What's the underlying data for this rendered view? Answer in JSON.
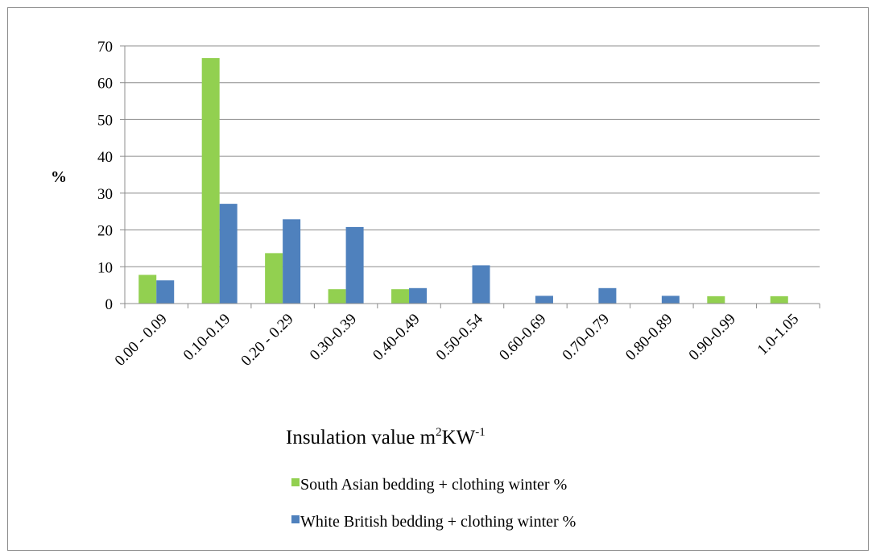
{
  "chart_data": {
    "type": "bar",
    "categories": [
      "0.00 - 0.09",
      "0.10-0.19",
      "0.20 - 0.29",
      "0.30-0.39",
      "0.40-0.49",
      "0.50-0.54",
      "0.60-0.69",
      "0.70-0.79",
      "0.80-0.89",
      "0.90-0.99",
      "1.0-1.05"
    ],
    "series": [
      {
        "name": "South Asian bedding + clothing winter %",
        "color": "#92d050",
        "values": [
          7.8,
          66.7,
          13.7,
          3.9,
          3.9,
          0,
          0,
          0,
          0,
          2.0,
          2.0
        ]
      },
      {
        "name": "White British bedding + clothing winter %",
        "color": "#4f81bd",
        "values": [
          6.3,
          27.1,
          22.9,
          20.8,
          4.2,
          10.4,
          2.1,
          4.2,
          2.1,
          0,
          0
        ]
      }
    ],
    "ylabel": "%",
    "xlabel": {
      "main": "Insulation value m",
      "sup1": "2",
      "mid": "KW",
      "sup2": "-1"
    },
    "ylim": [
      0,
      70
    ],
    "yticks": [
      "0",
      "10",
      "20",
      "30",
      "40",
      "50",
      "60",
      "70"
    ],
    "grid": true,
    "legend_position": "bottom"
  }
}
